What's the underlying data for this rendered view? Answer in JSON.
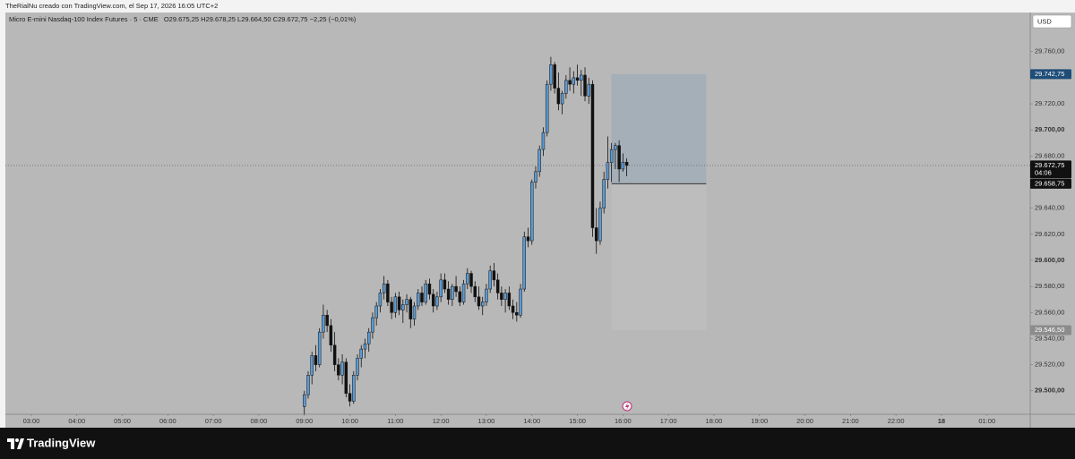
{
  "header": {
    "text": "TheRialNu creado con TradingView.com, el Sep 17, 2026 16:05 UTC+2"
  },
  "chart_data": {
    "type": "candlestick",
    "title": "Micro E-mini Nasdaq-100 Index Futures · 5 · CME",
    "legend": [
      {
        "key": "O",
        "value": "29.675,25"
      },
      {
        "key": "H",
        "value": "29.678,25"
      },
      {
        "key": "L",
        "value": "29.664,50"
      },
      {
        "key": "C",
        "value": "29.672,75"
      }
    ],
    "change": "−2,25 (−0,01%)",
    "currency": "USD",
    "up_color": "#5b9bd5",
    "down_color": "#111111",
    "ylim": [
      29482,
      29790
    ],
    "yticks": [
      {
        "value": 29500,
        "label": "29.500,00"
      },
      {
        "value": 29520,
        "label": "29.520,00"
      },
      {
        "value": 29540,
        "label": "29.540,00"
      },
      {
        "value": 29560,
        "label": "29.560,00"
      },
      {
        "value": 29580,
        "label": "29.580,00"
      },
      {
        "value": 29600,
        "label": "29.600,00"
      },
      {
        "value": 29620,
        "label": "29.620,00"
      },
      {
        "value": 29640,
        "label": "29.640,00"
      },
      {
        "value": 29680,
        "label": "29.680,00"
      },
      {
        "value": 29700,
        "label": "29.700,00"
      },
      {
        "value": 29720,
        "label": "29.720,00"
      },
      {
        "value": 29760,
        "label": "29.760,00"
      }
    ],
    "xlim": [
      2.43,
      24.95
    ],
    "xticks": [
      {
        "value": 3,
        "label": "03:00"
      },
      {
        "value": 4,
        "label": "04:00"
      },
      {
        "value": 5,
        "label": "05:00"
      },
      {
        "value": 6,
        "label": "06:00"
      },
      {
        "value": 7,
        "label": "07:00"
      },
      {
        "value": 8,
        "label": "08:00"
      },
      {
        "value": 9,
        "label": "09:00"
      },
      {
        "value": 10,
        "label": "10:00"
      },
      {
        "value": 11,
        "label": "11:00"
      },
      {
        "value": 12,
        "label": "12:00"
      },
      {
        "value": 13,
        "label": "13:00"
      },
      {
        "value": 14,
        "label": "14:00"
      },
      {
        "value": 15,
        "label": "15:00"
      },
      {
        "value": 16,
        "label": "16:00"
      },
      {
        "value": 17,
        "label": "17:00"
      },
      {
        "value": 18,
        "label": "18:00"
      },
      {
        "value": 19,
        "label": "19:00"
      },
      {
        "value": 20,
        "label": "20:00"
      },
      {
        "value": 21,
        "label": "21:00"
      },
      {
        "value": 22,
        "label": "22:00"
      },
      {
        "value": 23,
        "label": "18"
      },
      {
        "value": 24,
        "label": "01:00"
      }
    ],
    "candles": [
      [
        "09:00",
        29488,
        29500,
        29482,
        29497
      ],
      [
        "09:05",
        29497,
        29515,
        29494,
        29512
      ],
      [
        "09:10",
        29512,
        29530,
        29505,
        29527
      ],
      [
        "09:15",
        29527,
        29535,
        29515,
        29520
      ],
      [
        "09:20",
        29520,
        29548,
        29518,
        29545
      ],
      [
        "09:25",
        29545,
        29566,
        29540,
        29558
      ],
      [
        "09:30",
        29558,
        29562,
        29545,
        29550
      ],
      [
        "09:35",
        29550,
        29555,
        29530,
        29535
      ],
      [
        "09:40",
        29535,
        29545,
        29515,
        29520
      ],
      [
        "09:45",
        29520,
        29525,
        29508,
        29512
      ],
      [
        "09:50",
        29512,
        29528,
        29505,
        29522
      ],
      [
        "09:55",
        29522,
        29525,
        29495,
        29498
      ],
      [
        "10:00",
        29498,
        29505,
        29488,
        29492
      ],
      [
        "10:05",
        29492,
        29515,
        29490,
        29512
      ],
      [
        "10:10",
        29512,
        29528,
        29508,
        29525
      ],
      [
        "10:15",
        29525,
        29535,
        29518,
        29532
      ],
      [
        "10:20",
        29532,
        29540,
        29525,
        29536
      ],
      [
        "10:25",
        29536,
        29548,
        29530,
        29545
      ],
      [
        "10:30",
        29545,
        29560,
        29540,
        29556
      ],
      [
        "10:35",
        29556,
        29568,
        29550,
        29565
      ],
      [
        "10:40",
        29565,
        29578,
        29560,
        29575
      ],
      [
        "10:45",
        29575,
        29588,
        29570,
        29582
      ],
      [
        "10:50",
        29582,
        29585,
        29565,
        29568
      ],
      [
        "10:55",
        29568,
        29572,
        29555,
        29560
      ],
      [
        "11:00",
        29560,
        29575,
        29556,
        29572
      ],
      [
        "11:05",
        29572,
        29576,
        29558,
        29562
      ],
      [
        "11:10",
        29562,
        29570,
        29552,
        29566
      ],
      [
        "11:15",
        29566,
        29574,
        29560,
        29570
      ],
      [
        "11:20",
        29570,
        29572,
        29548,
        29555
      ],
      [
        "11:25",
        29555,
        29568,
        29550,
        29565
      ],
      [
        "11:30",
        29565,
        29578,
        29562,
        29575
      ],
      [
        "11:35",
        29575,
        29580,
        29565,
        29568
      ],
      [
        "11:40",
        29568,
        29585,
        29566,
        29582
      ],
      [
        "11:45",
        29582,
        29586,
        29570,
        29574
      ],
      [
        "11:50",
        29574,
        29578,
        29560,
        29565
      ],
      [
        "11:55",
        29565,
        29576,
        29562,
        29572
      ],
      [
        "12:00",
        29572,
        29590,
        29568,
        29585
      ],
      [
        "12:05",
        29585,
        29590,
        29575,
        29578
      ],
      [
        "12:10",
        29578,
        29584,
        29566,
        29570
      ],
      [
        "12:15",
        29570,
        29582,
        29565,
        29580
      ],
      [
        "12:20",
        29580,
        29588,
        29572,
        29576
      ],
      [
        "12:25",
        29576,
        29580,
        29565,
        29568
      ],
      [
        "12:30",
        29568,
        29585,
        29566,
        29582
      ],
      [
        "12:35",
        29582,
        29594,
        29578,
        29590
      ],
      [
        "12:40",
        29590,
        29592,
        29575,
        29580
      ],
      [
        "12:45",
        29580,
        29584,
        29568,
        29572
      ],
      [
        "12:50",
        29572,
        29580,
        29562,
        29565
      ],
      [
        "12:55",
        29565,
        29572,
        29558,
        29568
      ],
      [
        "13:00",
        29568,
        29582,
        29565,
        29578
      ],
      [
        "13:05",
        29578,
        29596,
        29575,
        29592
      ],
      [
        "13:10",
        29592,
        29598,
        29580,
        29585
      ],
      [
        "13:15",
        29585,
        29590,
        29570,
        29575
      ],
      [
        "13:20",
        29575,
        29580,
        29565,
        29570
      ],
      [
        "13:25",
        29570,
        29578,
        29560,
        29575
      ],
      [
        "13:30",
        29575,
        29580,
        29562,
        29565
      ],
      [
        "13:35",
        29565,
        29570,
        29555,
        29560
      ],
      [
        "13:40",
        29560,
        29568,
        29553,
        29558
      ],
      [
        "13:45",
        29558,
        29582,
        29556,
        29578
      ],
      [
        "13:50",
        29578,
        29622,
        29576,
        29618
      ],
      [
        "13:55",
        29618,
        29625,
        29610,
        29615
      ],
      [
        "14:00",
        29615,
        29662,
        29612,
        29660
      ],
      [
        "14:05",
        29660,
        29672,
        29655,
        29668
      ],
      [
        "14:10",
        29668,
        29688,
        29664,
        29685
      ],
      [
        "14:15",
        29685,
        29702,
        29680,
        29698
      ],
      [
        "14:20",
        29698,
        29738,
        29695,
        29735
      ],
      [
        "14:25",
        29735,
        29756,
        29730,
        29750
      ],
      [
        "14:30",
        29750,
        29752,
        29728,
        29732
      ],
      [
        "14:35",
        29732,
        29744,
        29715,
        29720
      ],
      [
        "14:40",
        29720,
        29730,
        29712,
        29728
      ],
      [
        "14:45",
        29728,
        29742,
        29724,
        29738
      ],
      [
        "14:50",
        29738,
        29748,
        29730,
        29735
      ],
      [
        "14:55",
        29735,
        29745,
        29728,
        29740
      ],
      [
        "15:00",
        29740,
        29750,
        29734,
        29738
      ],
      [
        "15:05",
        29738,
        29746,
        29726,
        29742
      ],
      [
        "15:10",
        29742,
        29748,
        29722,
        29726
      ],
      [
        "15:15",
        29726,
        29740,
        29720,
        29735
      ],
      [
        "15:20",
        29735,
        29738,
        29618,
        29625
      ],
      [
        "15:25",
        29625,
        29640,
        29605,
        29615
      ],
      [
        "15:30",
        29615,
        29645,
        29612,
        29640
      ],
      [
        "15:35",
        29640,
        29668,
        29636,
        29662
      ],
      [
        "15:40",
        29662,
        29695,
        29655,
        29675
      ],
      [
        "15:45",
        29675,
        29690,
        29660,
        29685
      ],
      [
        "15:50",
        29685,
        29690,
        29670,
        29688
      ],
      [
        "15:55",
        29688,
        29692,
        29660,
        29670
      ],
      [
        "16:00",
        29670,
        29682,
        29668,
        29675.25
      ],
      [
        "16:05",
        29675.25,
        29678.25,
        29664.5,
        29672.75
      ]
    ],
    "last_price": 29672.75,
    "last_price_label": "29.672,75",
    "countdown": "04:06",
    "position": {
      "entry": 29658.75,
      "entry_label": "29.658,75",
      "target": 29742.75,
      "target_label": "29.742,75",
      "stop": 29546.5,
      "stop_label": "29.546,50",
      "xstart": 15.75,
      "xend": 17.83
    }
  },
  "footer": {
    "brand": "TradingView"
  }
}
